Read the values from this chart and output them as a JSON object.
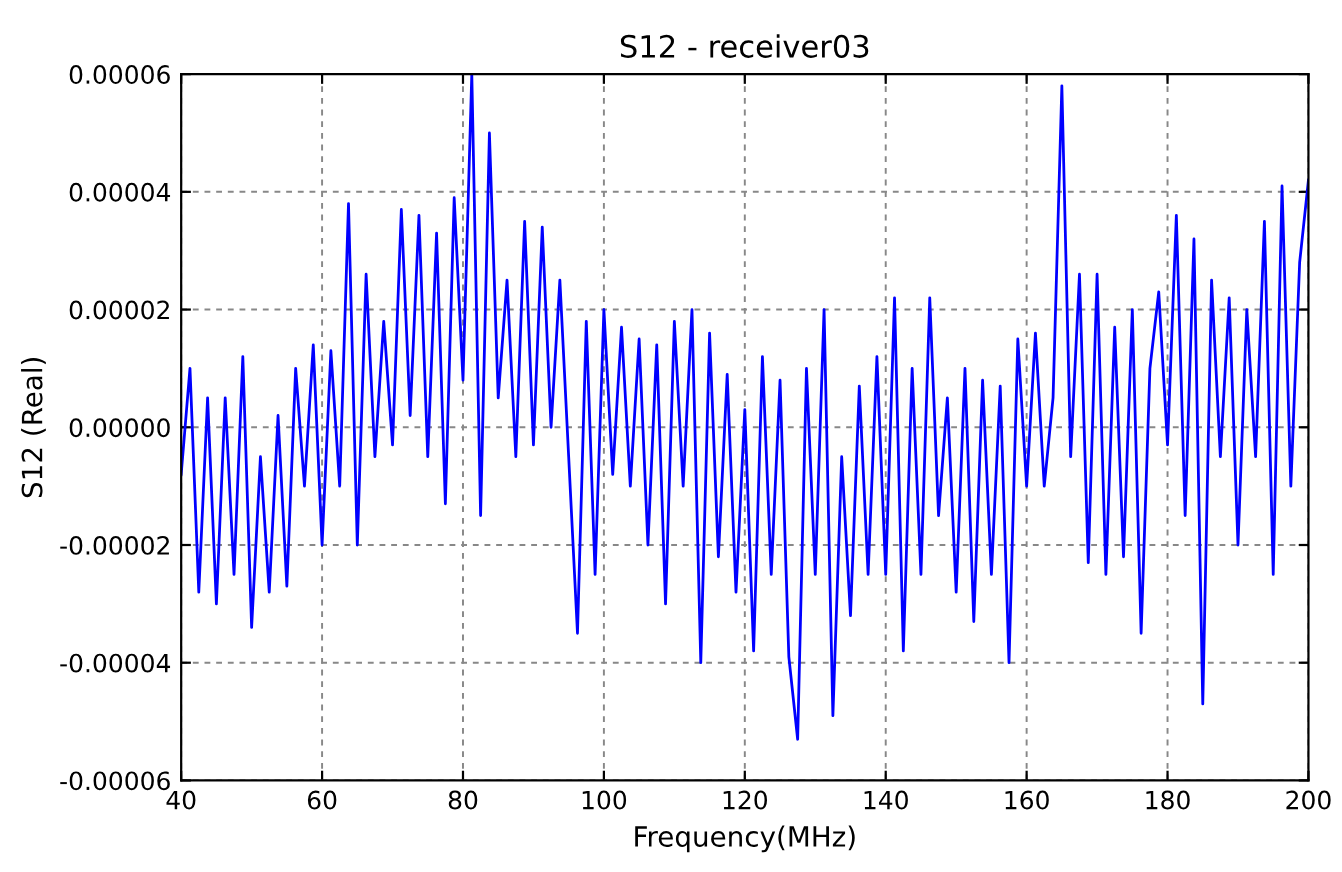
{
  "chart_data": {
    "type": "line",
    "title": "S12 - receiver03",
    "xlabel": "Frequency(MHz)",
    "ylabel": "S12 (Real)",
    "xlim": [
      40,
      200
    ],
    "xticks": [
      40,
      60,
      80,
      100,
      120,
      140,
      160,
      180,
      200
    ],
    "ylim": [
      -6e-05,
      6e-05
    ],
    "yticks": [
      {
        "value": -6e-05,
        "label": "-0.00006"
      },
      {
        "value": -4e-05,
        "label": "-0.00004"
      },
      {
        "value": -2e-05,
        "label": "-0.00002"
      },
      {
        "value": 0,
        "label": "0.00000"
      },
      {
        "value": 2e-05,
        "label": "0.00002"
      },
      {
        "value": 4e-05,
        "label": "0.00004"
      },
      {
        "value": 6e-05,
        "label": "0.00006"
      }
    ],
    "grid": true,
    "marker": "none",
    "line_style": "solid",
    "series": [
      {
        "color": "#0000ff",
        "x": [
          40,
          41.25,
          42.5,
          43.75,
          45,
          46.25,
          47.5,
          48.75,
          50,
          51.25,
          52.5,
          53.75,
          55,
          56.25,
          57.5,
          58.75,
          60,
          61.25,
          62.5,
          63.75,
          65,
          66.25,
          67.5,
          68.75,
          70,
          71.25,
          72.5,
          73.75,
          75,
          76.25,
          77.5,
          78.75,
          80,
          81.25,
          82.5,
          83.75,
          85,
          86.25,
          87.5,
          88.75,
          90,
          91.25,
          92.5,
          93.75,
          95,
          96.25,
          97.5,
          98.75,
          100,
          101.25,
          102.5,
          103.75,
          105,
          106.25,
          107.5,
          108.75,
          110,
          111.25,
          112.5,
          113.75,
          115,
          116.25,
          117.5,
          118.75,
          120,
          121.25,
          122.5,
          123.75,
          125,
          126.25,
          127.5,
          128.75,
          130,
          131.25,
          132.5,
          133.75,
          135,
          136.25,
          137.5,
          138.75,
          140,
          141.25,
          142.5,
          143.75,
          145,
          146.25,
          147.5,
          148.75,
          150,
          151.25,
          152.5,
          153.75,
          155,
          156.25,
          157.5,
          158.75,
          160,
          161.25,
          162.5,
          163.75,
          165,
          166.25,
          167.5,
          168.75,
          170,
          171.25,
          172.5,
          173.75,
          175,
          176.25,
          177.5,
          178.75,
          180,
          181.25,
          182.5,
          183.75,
          185,
          186.25,
          187.5,
          188.75,
          190,
          191.25,
          192.5,
          193.75,
          195,
          196.25,
          197.5,
          198.75,
          200
        ],
        "values": [
          -8e-06,
          1e-05,
          -2.8e-05,
          5e-06,
          -3e-05,
          5e-06,
          -2.5e-05,
          1.2e-05,
          -3.4e-05,
          -5e-06,
          -2.8e-05,
          2e-06,
          -2.7e-05,
          1e-05,
          -1e-05,
          1.4e-05,
          -2e-05,
          1.3e-05,
          -1e-05,
          3.8e-05,
          -2e-05,
          2.6e-05,
          -5e-06,
          1.8e-05,
          -3e-06,
          3.7e-05,
          2e-06,
          3.6e-05,
          -5e-06,
          3.3e-05,
          -1.3e-05,
          3.9e-05,
          8e-06,
          6e-05,
          -1.5e-05,
          5e-05,
          5e-06,
          2.5e-05,
          -5e-06,
          3.5e-05,
          -3e-06,
          3.4e-05,
          0.0,
          2.5e-05,
          -5e-06,
          -3.5e-05,
          1.8e-05,
          -2.5e-05,
          2e-05,
          -8e-06,
          1.7e-05,
          -1e-05,
          1.5e-05,
          -2e-05,
          1.4e-05,
          -3e-05,
          1.8e-05,
          -1e-05,
          2e-05,
          -4e-05,
          1.6e-05,
          -2.2e-05,
          9e-06,
          -2.8e-05,
          3e-06,
          -3.8e-05,
          1.2e-05,
          -2.5e-05,
          8e-06,
          -3.9e-05,
          -5.3e-05,
          1e-05,
          -2.5e-05,
          2e-05,
          -4.9e-05,
          -5e-06,
          -3.2e-05,
          7e-06,
          -2.5e-05,
          1.2e-05,
          -2.5e-05,
          2.2e-05,
          -3.8e-05,
          1e-05,
          -2.5e-05,
          2.2e-05,
          -1.5e-05,
          5e-06,
          -2.8e-05,
          1e-05,
          -3.3e-05,
          8e-06,
          -2.5e-05,
          7e-06,
          -4e-05,
          1.5e-05,
          -1e-05,
          1.6e-05,
          -1e-05,
          5e-06,
          5.8e-05,
          -5e-06,
          2.6e-05,
          -2.3e-05,
          2.6e-05,
          -2.5e-05,
          1.7e-05,
          -2.2e-05,
          2e-05,
          -3.5e-05,
          1e-05,
          2.3e-05,
          -3e-06,
          3.6e-05,
          -1.5e-05,
          3.2e-05,
          -4.7e-05,
          2.5e-05,
          -5e-06,
          2.2e-05,
          -2e-05,
          2e-05,
          -5e-06,
          3.5e-05,
          -2.5e-05,
          4.1e-05,
          -1e-05,
          2.8e-05,
          4.2e-05
        ]
      }
    ]
  }
}
